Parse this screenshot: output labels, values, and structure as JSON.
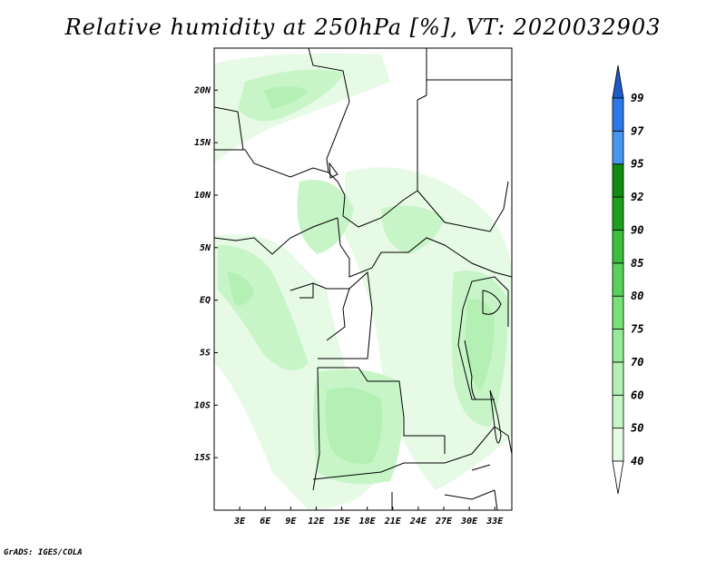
{
  "title": "Relative humidity at 250hPa [%], VT: 2020032903",
  "credit": "GrADS: IGES/COLA",
  "map": {
    "lon_range": [
      0,
      35
    ],
    "lat_range": [
      -20,
      24
    ],
    "lat_ticks": [
      {
        "value": 20,
        "label": "20N"
      },
      {
        "value": 15,
        "label": "15N"
      },
      {
        "value": 10,
        "label": "10N"
      },
      {
        "value": 5,
        "label": "5N"
      },
      {
        "value": 0,
        "label": "EQ"
      },
      {
        "value": -5,
        "label": "5S"
      },
      {
        "value": -10,
        "label": "10S"
      },
      {
        "value": -15,
        "label": "15S"
      }
    ],
    "lon_ticks": [
      {
        "value": 3,
        "label": "3E"
      },
      {
        "value": 6,
        "label": "6E"
      },
      {
        "value": 9,
        "label": "9E"
      },
      {
        "value": 12,
        "label": "12E"
      },
      {
        "value": 15,
        "label": "15E"
      },
      {
        "value": 18,
        "label": "18E"
      },
      {
        "value": 21,
        "label": "21E"
      },
      {
        "value": 24,
        "label": "24E"
      },
      {
        "value": 27,
        "label": "27E"
      },
      {
        "value": 30,
        "label": "30E"
      },
      {
        "value": 33,
        "label": "33E"
      }
    ]
  },
  "colorbar": {
    "levels": [
      "40",
      "50",
      "60",
      "70",
      "75",
      "80",
      "85",
      "90",
      "92",
      "95",
      "97",
      "99"
    ],
    "colors": [
      "#e6fae6",
      "#c8f5c8",
      "#b4f0b4",
      "#96eb96",
      "#78e178",
      "#5ad25a",
      "#3cbe3c",
      "#1ea01e",
      "#0f8c0f",
      "#4696f0",
      "#2d78e6",
      "#1e5ac8"
    ]
  }
}
